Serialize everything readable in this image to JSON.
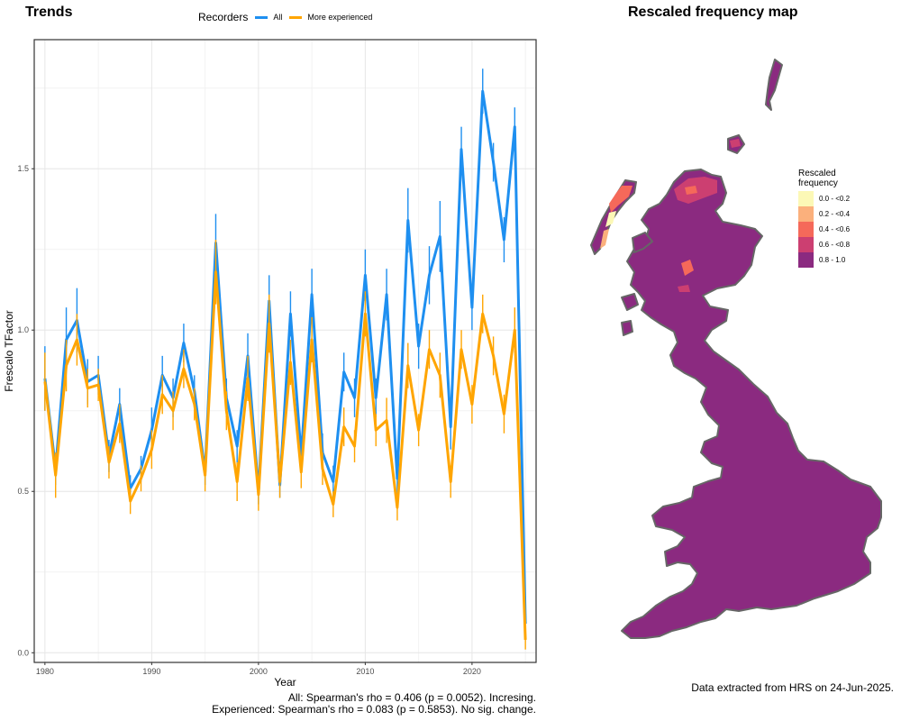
{
  "left_title": "Trends",
  "right_title": "Rescaled frequency map",
  "legend": {
    "title": "Recorders",
    "items": [
      {
        "label": "All",
        "color": "#1e8ff0"
      },
      {
        "label": "More experienced",
        "color": "#ffa500"
      }
    ]
  },
  "stats": {
    "all": "All: Spearman's rho = 0.406 (p = 0.0052). Incresing.",
    "experienced": "Experienced: Spearman's rho = 0.083 (p = 0.5853). No sig. change."
  },
  "data_note": "Data extracted from HRS on 24-Jun-2025.",
  "map": {
    "legend_title_line1": "Rescaled",
    "legend_title_line2": "frequency",
    "land_color": "#8b2a80",
    "outline_color": "#666666",
    "classes": [
      {
        "label": "0.0 - <0.2",
        "color": "#fcf8b6"
      },
      {
        "label": "0.2 - <0.4",
        "color": "#fbb07c"
      },
      {
        "label": "0.4 - <0.6",
        "color": "#f5695a"
      },
      {
        "label": "0.6 - <0.8",
        "color": "#cc3f71"
      },
      {
        "label": "0.8 - 1.0",
        "color": "#8b2a80"
      }
    ]
  },
  "chart_data": {
    "type": "line",
    "xlabel": "Year",
    "ylabel": "Frescalo TFactor",
    "xlim": [
      1979,
      2026
    ],
    "ylim": [
      -0.03,
      1.9
    ],
    "x_ticks": [
      1980,
      1990,
      2000,
      2010,
      2020
    ],
    "y_ticks": [
      0.0,
      0.5,
      1.0,
      1.5
    ],
    "y_tick_labels": [
      "0.0",
      "0.5",
      "1.0",
      "1.5"
    ],
    "grid": true,
    "x": [
      1980,
      1981,
      1982,
      1983,
      1984,
      1985,
      1986,
      1987,
      1988,
      1989,
      1990,
      1991,
      1992,
      1993,
      1994,
      1995,
      1996,
      1997,
      1998,
      1999,
      2000,
      2001,
      2002,
      2003,
      2004,
      2005,
      2006,
      2007,
      2008,
      2009,
      2010,
      2011,
      2012,
      2013,
      2014,
      2015,
      2016,
      2017,
      2018,
      2019,
      2020,
      2021,
      2022,
      2023,
      2024,
      2025
    ],
    "series": [
      {
        "name": "All",
        "color": "#1e8ff0",
        "values": [
          0.85,
          0.57,
          0.97,
          1.03,
          0.84,
          0.86,
          0.61,
          0.77,
          0.51,
          0.57,
          0.69,
          0.86,
          0.79,
          0.96,
          0.81,
          0.56,
          1.27,
          0.79,
          0.64,
          0.92,
          0.5,
          1.09,
          0.52,
          1.05,
          0.61,
          1.11,
          0.62,
          0.53,
          0.87,
          0.79,
          1.17,
          0.79,
          1.11,
          0.54,
          1.34,
          0.95,
          1.17,
          1.29,
          0.7,
          1.56,
          1.07,
          1.74,
          1.52,
          1.28,
          1.63,
          0.09
        ],
        "err": [
          0.1,
          0.05,
          0.1,
          0.1,
          0.07,
          0.06,
          0.05,
          0.05,
          0.04,
          0.04,
          0.07,
          0.06,
          0.06,
          0.06,
          0.05,
          0.04,
          0.09,
          0.06,
          0.05,
          0.07,
          0.04,
          0.08,
          0.04,
          0.07,
          0.05,
          0.08,
          0.06,
          0.05,
          0.06,
          0.06,
          0.08,
          0.06,
          0.08,
          0.05,
          0.1,
          0.07,
          0.09,
          0.11,
          0.07,
          0.07,
          0.07,
          0.07,
          0.06,
          0.07,
          0.06,
          0.02
        ]
      },
      {
        "name": "More experienced",
        "color": "#ffa500",
        "values": [
          0.84,
          0.55,
          0.89,
          0.97,
          0.82,
          0.83,
          0.59,
          0.71,
          0.47,
          0.54,
          0.63,
          0.8,
          0.75,
          0.88,
          0.77,
          0.55,
          1.18,
          0.75,
          0.53,
          0.85,
          0.49,
          1.02,
          0.53,
          0.9,
          0.56,
          0.97,
          0.57,
          0.46,
          0.7,
          0.64,
          1.05,
          0.69,
          0.72,
          0.45,
          0.89,
          0.69,
          0.94,
          0.86,
          0.53,
          0.94,
          0.77,
          1.05,
          0.92,
          0.74,
          1.0,
          0.04
        ],
        "err": [
          0.09,
          0.07,
          0.08,
          0.08,
          0.06,
          0.05,
          0.05,
          0.06,
          0.04,
          0.04,
          0.06,
          0.06,
          0.06,
          0.06,
          0.05,
          0.05,
          0.1,
          0.06,
          0.06,
          0.07,
          0.05,
          0.09,
          0.05,
          0.07,
          0.05,
          0.07,
          0.05,
          0.04,
          0.06,
          0.05,
          0.07,
          0.05,
          0.07,
          0.04,
          0.07,
          0.05,
          0.06,
          0.07,
          0.05,
          0.06,
          0.06,
          0.06,
          0.06,
          0.06,
          0.07,
          0.03
        ]
      }
    ]
  }
}
